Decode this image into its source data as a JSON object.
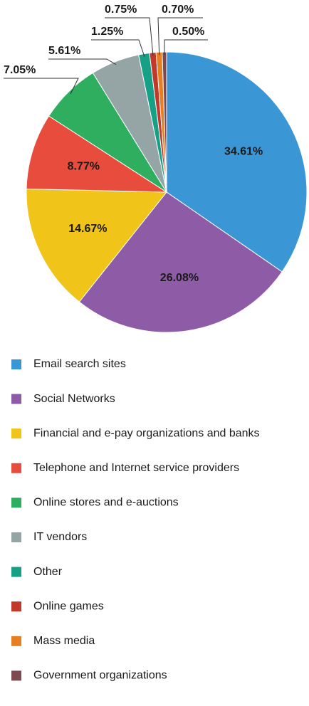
{
  "chart_data": {
    "type": "pie",
    "categories": [
      "Email search sites",
      "Social Networks",
      "Financial and e-pay organizations and banks",
      "Telephone and Internet service providers",
      "Online stores and e-auctions",
      "IT vendors",
      "Other",
      "Online games",
      "Mass media",
      "Government organizations"
    ],
    "values": [
      34.61,
      26.08,
      14.67,
      8.77,
      7.05,
      5.61,
      1.25,
      0.75,
      0.7,
      0.5
    ],
    "value_labels": [
      "34.61%",
      "26.08%",
      "14.67%",
      "8.77%",
      "7.05%",
      "5.61%",
      "1.25%",
      "0.75%",
      "0.70%",
      "0.50%"
    ],
    "colors": [
      "#3a96d4",
      "#8e5ba6",
      "#f0c419",
      "#e84c3d",
      "#2fae60",
      "#95a5a6",
      "#16a085",
      "#c0392b",
      "#e67e22",
      "#7e4850"
    ]
  }
}
